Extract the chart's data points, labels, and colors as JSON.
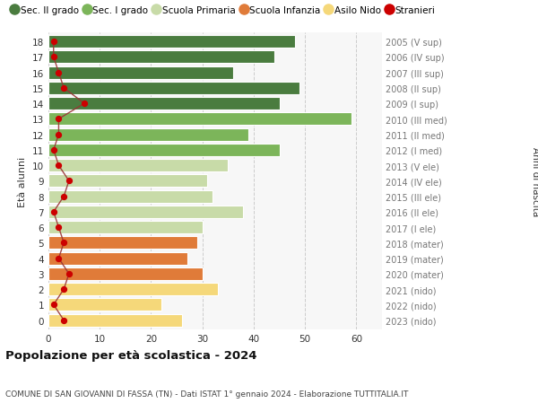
{
  "ages": [
    18,
    17,
    16,
    15,
    14,
    13,
    12,
    11,
    10,
    9,
    8,
    7,
    6,
    5,
    4,
    3,
    2,
    1,
    0
  ],
  "bar_values": [
    48,
    44,
    36,
    49,
    45,
    59,
    39,
    45,
    35,
    31,
    32,
    38,
    30,
    29,
    27,
    30,
    33,
    22,
    26
  ],
  "stranieri": [
    1,
    1,
    2,
    3,
    7,
    2,
    2,
    1,
    2,
    4,
    3,
    1,
    2,
    3,
    2,
    4,
    3,
    1,
    3
  ],
  "right_labels": [
    "2005 (V sup)",
    "2006 (IV sup)",
    "2007 (III sup)",
    "2008 (II sup)",
    "2009 (I sup)",
    "2010 (III med)",
    "2011 (II med)",
    "2012 (I med)",
    "2013 (V ele)",
    "2014 (IV ele)",
    "2015 (III ele)",
    "2016 (II ele)",
    "2017 (I ele)",
    "2018 (mater)",
    "2019 (mater)",
    "2020 (mater)",
    "2021 (nido)",
    "2022 (nido)",
    "2023 (nido)"
  ],
  "bar_colors": [
    "#4a7c3f",
    "#4a7c3f",
    "#4a7c3f",
    "#4a7c3f",
    "#4a7c3f",
    "#7cb55a",
    "#7cb55a",
    "#7cb55a",
    "#c8dba8",
    "#c8dba8",
    "#c8dba8",
    "#c8dba8",
    "#c8dba8",
    "#e07b39",
    "#e07b39",
    "#e07b39",
    "#f5d87a",
    "#f5d87a",
    "#f5d87a"
  ],
  "legend_labels": [
    "Sec. II grado",
    "Sec. I grado",
    "Scuola Primaria",
    "Scuola Infanzia",
    "Asilo Nido",
    "Stranieri"
  ],
  "legend_colors": [
    "#4a7c3f",
    "#7cb55a",
    "#c8dba8",
    "#e07b39",
    "#f5d87a",
    "#cc0000"
  ],
  "title": "Popolazione per età scolastica - 2024",
  "subtitle": "COMUNE DI SAN GIOVANNI DI FASSA (TN) - Dati ISTAT 1° gennaio 2024 - Elaborazione TUTTITALIA.IT",
  "xlabel_left": "Età alunni",
  "xlabel_right": "Anni di nascita",
  "xlim": [
    0,
    65
  ],
  "xticks": [
    0,
    10,
    20,
    30,
    40,
    50,
    60
  ],
  "bg_color": "#ffffff",
  "bar_bg_color": "#f7f7f7",
  "grid_color": "#cccccc",
  "stranieri_color": "#cc0000",
  "stranieri_line_color": "#993333",
  "right_label_color": "#777777",
  "tick_label_color": "#333333"
}
